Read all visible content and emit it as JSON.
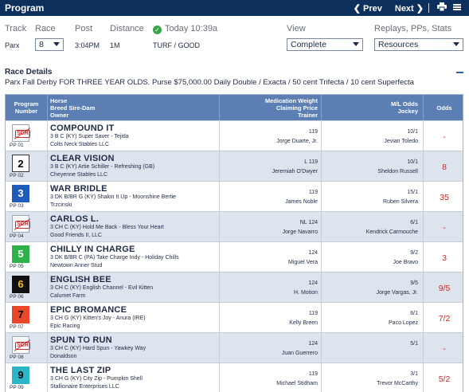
{
  "header": {
    "title": "Program",
    "prev_label": "❮ Prev",
    "next_label": "Next ❯",
    "print_icon": "print-icon",
    "menu_icon": "menu-icon"
  },
  "race_info": {
    "track_label": "Track",
    "track_value": "Parx",
    "race_label": "Race",
    "race_value": "8",
    "post_label": "Post",
    "post_value": "3:04PM",
    "distance_label": "Distance",
    "distance_value": "1M",
    "status_text": "Today 10:39a",
    "surface_value": "TURF / GOOD",
    "view_label": "View",
    "view_value": "Complete",
    "replays_label": "Replays, PPs, Stats",
    "replays_value": "Resources"
  },
  "race_details": {
    "heading": "Race Details",
    "description": "Parx Fall Derby FOR THREE YEAR OLDS. Purse $75,000.00 Daily Double / Exacta / 50 cent Trifecta / 10 cent Superfecta"
  },
  "table": {
    "col_program": "Program Number",
    "col_horse_1": "Horse",
    "col_horse_2": "Breed Sire-Dam",
    "col_horse_3": "Owner",
    "col_med_1": "Medication Weight",
    "col_med_2": "Claiming Price",
    "col_med_3": "Trainer",
    "col_ml_1": "M/L Odds",
    "col_ml_2": "Jockey",
    "col_odds": "Odds",
    "rows": [
      {
        "num": "",
        "scr": true,
        "pp": "PP 01",
        "horse": "COMPOUND IT",
        "breed": "3 B C (KY) Super Saver - Tejida",
        "owner": "Colts Neck Stables LLC",
        "weight": "119",
        "trainer": "Jorge Duarte, Jr.",
        "ml": "10/1",
        "jockey": "Jevian Toledo",
        "odds": "-",
        "bg": "#ffffff",
        "fg": "#000000"
      },
      {
        "num": "2",
        "scr": false,
        "pp": "PP 02",
        "horse": "CLEAR VISION",
        "breed": "3 B C (KY) Artie Schiller - Refreshing (GB)",
        "owner": "Cheyenne Stables LLC",
        "weight": "L 119",
        "trainer": "Jeremiah O'Dwyer",
        "ml": "10/1",
        "jockey": "Sheldon Russell",
        "odds": "8",
        "bg": "#ffffff",
        "fg": "#000000"
      },
      {
        "num": "3",
        "scr": false,
        "pp": "PP 03",
        "horse": "WAR BRIDLE",
        "breed": "3 DK B/BR G (KY) Shakin It Up - Moonshine Bertie",
        "owner": "Trzcinski",
        "weight": "119",
        "trainer": "James Noble",
        "ml": "15/1",
        "jockey": "Ruben Silvera",
        "odds": "35",
        "bg": "#1f5bb8",
        "fg": "#ffffff"
      },
      {
        "num": "",
        "scr": true,
        "pp": "PP 04",
        "horse": "CARLOS L.",
        "breed": "3 CH C (KY) Hold Me Back - Bless Your Heart",
        "owner": "Good Friends II, LLC",
        "weight": "NL 124",
        "trainer": "Jorge Navarro",
        "ml": "6/1",
        "jockey": "Kendrick Carmouche",
        "odds": "-",
        "bg": "#ffffff",
        "fg": "#000000"
      },
      {
        "num": "5",
        "scr": false,
        "pp": "PP 05",
        "horse": "CHILLY IN CHARGE",
        "breed": "3 DK B/BR C (PA) Take Charge Indy - Holiday Chills",
        "owner": "Newtown Anner Stud",
        "weight": "124",
        "trainer": "Miguel Vera",
        "ml": "9/2",
        "jockey": "Joe Bravo",
        "odds": "3",
        "bg": "#2db24a",
        "fg": "#ffffff"
      },
      {
        "num": "6",
        "scr": false,
        "pp": "PP 06",
        "horse": "ENGLISH BEE",
        "breed": "3 CH C (KY) English Channel - Evil Kitten",
        "owner": "Calumet Farm",
        "weight": "124",
        "trainer": "H. Motion",
        "ml": "9/5",
        "jockey": "Jorge Vargas, Jr.",
        "odds": "9/5",
        "bg": "#111111",
        "fg": "#f2c41a"
      },
      {
        "num": "7",
        "scr": false,
        "pp": "PP 07",
        "horse": "EPIC BROMANCE",
        "breed": "3 CH G (KY) Kitten's Joy - Anura (IRE)",
        "owner": "Epic Racing",
        "weight": "119",
        "trainer": "Kelly Breen",
        "ml": "6/1",
        "jockey": "Paco Lopez",
        "odds": "7/2",
        "bg": "#e8472a",
        "fg": "#000000"
      },
      {
        "num": "",
        "scr": true,
        "pp": "PP 08",
        "horse": "SPUN TO RUN",
        "breed": "3 CH C (KY) Hard Spun - Yawkey Way",
        "owner": "Donaldson",
        "weight": "124",
        "trainer": "Juan Guerrero",
        "ml": "5/1",
        "jockey": "",
        "odds": "-",
        "bg": "#ffffff",
        "fg": "#000000"
      },
      {
        "num": "9",
        "scr": false,
        "pp": "PP 09",
        "horse": "THE LAST ZIP",
        "breed": "3 CH G (KY) City Zip - Pumpkin Shell",
        "owner": "Stallionaire Enterprises LLC",
        "weight": "119",
        "trainer": "Michael Stidham",
        "ml": "3/1",
        "jockey": "Trevor McCarthy",
        "odds": "5/2",
        "bg": "#2bb5c6",
        "fg": "#000000"
      }
    ]
  }
}
